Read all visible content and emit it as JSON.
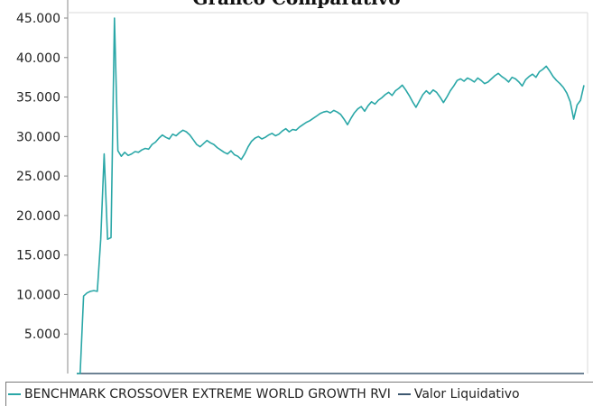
{
  "title": "Grafico Comparativo",
  "chart_data": {
    "type": "line",
    "title": "Grafico Comparativo",
    "xlabel": "",
    "ylabel": "",
    "ylim": [
      0,
      45000
    ],
    "yticks": [
      5000,
      10000,
      15000,
      20000,
      25000,
      30000,
      35000,
      40000,
      45000
    ],
    "ytick_labels": [
      "5.000",
      "10.000",
      "15.000",
      "20.000",
      "25.000",
      "30.000",
      "35.000",
      "40.000",
      "45.000"
    ],
    "grid": false,
    "legend_position": "bottom",
    "x": [
      0,
      1,
      2,
      3,
      4,
      5,
      6,
      7,
      8,
      9,
      10,
      11,
      12,
      13,
      14,
      15,
      16,
      17,
      18,
      19,
      20,
      21,
      22,
      23,
      24,
      25,
      26,
      27,
      28,
      29,
      30,
      31,
      32,
      33,
      34,
      35,
      36,
      37,
      38,
      39,
      40,
      41,
      42,
      43,
      44,
      45,
      46,
      47,
      48,
      49,
      50,
      51,
      52,
      53,
      54,
      55,
      56,
      57,
      58,
      59,
      60,
      61,
      62,
      63,
      64,
      65,
      66,
      67,
      68,
      69,
      70,
      71,
      72,
      73,
      74,
      75,
      76,
      77,
      78,
      79,
      80,
      81,
      82,
      83,
      84,
      85,
      86,
      87,
      88,
      89,
      90,
      91,
      92,
      93,
      94,
      95,
      96,
      97,
      98,
      99,
      100,
      101,
      102,
      103,
      104,
      105,
      106,
      107,
      108,
      109,
      110,
      111,
      112,
      113,
      114,
      115,
      116,
      117,
      118,
      119,
      120,
      121,
      122,
      123,
      124,
      125,
      126,
      127,
      128,
      129,
      130,
      131,
      132,
      133,
      134,
      135,
      136,
      137,
      138,
      139,
      140,
      141,
      142,
      143,
      144,
      145,
      146,
      147,
      148
    ],
    "series": [
      {
        "name": "BENCHMARK CROSSOVER EXTREME WORLD GROWTH RVI",
        "color": "#2aa7a7",
        "values": [
          0,
          0,
          9800,
          10200,
          10400,
          10500,
          10400,
          17000,
          27800,
          17000,
          17200,
          45000,
          28200,
          27500,
          28000,
          27600,
          27800,
          28100,
          28000,
          28300,
          28500,
          28400,
          29000,
          29300,
          29800,
          30200,
          29900,
          29700,
          30300,
          30100,
          30500,
          30800,
          30600,
          30200,
          29600,
          29000,
          28700,
          29100,
          29500,
          29200,
          29000,
          28600,
          28300,
          28000,
          27800,
          28200,
          27700,
          27500,
          27100,
          27800,
          28700,
          29400,
          29800,
          30000,
          29700,
          29900,
          30200,
          30400,
          30100,
          30300,
          30700,
          31000,
          30600,
          30900,
          30800,
          31200,
          31500,
          31800,
          32000,
          32300,
          32600,
          32900,
          33100,
          33200,
          33000,
          33300,
          33100,
          32800,
          32200,
          31500,
          32300,
          33000,
          33500,
          33800,
          33200,
          33900,
          34400,
          34100,
          34600,
          34900,
          35300,
          35600,
          35200,
          35800,
          36100,
          36500,
          35900,
          35200,
          34400,
          33700,
          34500,
          35300,
          35800,
          35400,
          35900,
          35600,
          35000,
          34300,
          35000,
          35800,
          36400,
          37100,
          37300,
          37000,
          37400,
          37200,
          36900,
          37400,
          37100,
          36700,
          36900,
          37300,
          37700,
          38000,
          37600,
          37300,
          36900,
          37500,
          37300,
          36900,
          36400,
          37200,
          37600,
          37900,
          37500,
          38200,
          38500,
          38900,
          38300,
          37600,
          37100,
          36700,
          36200,
          35500,
          34400,
          32200,
          34000,
          34600,
          36500
        ]
      },
      {
        "name": "Valor Liquidativo",
        "color": "#3d5870",
        "values": [
          0,
          0,
          0,
          0,
          0,
          0,
          0,
          0,
          0,
          0,
          0,
          0,
          0,
          0,
          0,
          0,
          0,
          0,
          0,
          0,
          0,
          0,
          0,
          0,
          0,
          0,
          0,
          0,
          0,
          0,
          0,
          0,
          0,
          0,
          0,
          0,
          0,
          0,
          0,
          0,
          0,
          0,
          0,
          0,
          0,
          0,
          0,
          0,
          0,
          0,
          0,
          0,
          0,
          0,
          0,
          0,
          0,
          0,
          0,
          0,
          0,
          0,
          0,
          0,
          0,
          0,
          0,
          0,
          0,
          0,
          0,
          0,
          0,
          0,
          0,
          0,
          0,
          0,
          0,
          0,
          0,
          0,
          0,
          0,
          0,
          0,
          0,
          0,
          0,
          0,
          0,
          0,
          0,
          0,
          0,
          0,
          0,
          0,
          0,
          0,
          0,
          0,
          0,
          0,
          0,
          0,
          0,
          0,
          0,
          0,
          0,
          0,
          0,
          0,
          0,
          0,
          0,
          0,
          0,
          0,
          0,
          0,
          0,
          0,
          0,
          0,
          0,
          0,
          0,
          0,
          0,
          0,
          0,
          0,
          0,
          0,
          0,
          0,
          0,
          0,
          0,
          0,
          0,
          0,
          0,
          0,
          0,
          0,
          0
        ]
      }
    ]
  }
}
